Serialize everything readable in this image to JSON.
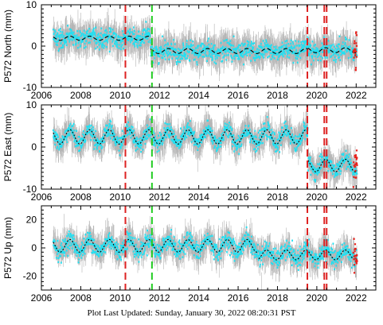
{
  "footer": "Plot Last Updated:   Sunday, January 30, 2022 08:20:31 PST",
  "colors": {
    "error_bars": "#b4b4b4",
    "daily": "#22e0f2",
    "model": "#000000",
    "outliers": "#e8201a",
    "equip_change": "#dd2222",
    "earthquake": "#22cc22"
  },
  "chart_data": [
    {
      "type": "scatter",
      "component": "north",
      "ylabel": "P572 North (mm)",
      "xlim": [
        2006,
        2023
      ],
      "ylim": [
        -10,
        10
      ],
      "xticks": [
        2006,
        2008,
        2010,
        2012,
        2014,
        2016,
        2018,
        2020,
        2022
      ],
      "yticks": [
        -10,
        0,
        10
      ],
      "offsets": [
        {
          "start": 2006.6,
          "end": 2011.55,
          "level": 1.9,
          "amp": 0.5
        },
        {
          "start": 2011.55,
          "end": 2019.55,
          "level": -1.2,
          "amp": 0.6
        },
        {
          "start": 2019.55,
          "end": 2022.05,
          "level": -1.0,
          "amp": 0.6
        }
      ],
      "noise": 1.4,
      "errorbar": 2.8,
      "markers_red": [
        2010.27,
        2019.52,
        2020.38,
        2020.5
      ],
      "markers_green": [
        2011.62
      ]
    },
    {
      "type": "scatter",
      "component": "east",
      "ylabel": "P572 East (mm)",
      "xlim": [
        2006,
        2023
      ],
      "ylim": [
        -10,
        10
      ],
      "xticks": [
        2006,
        2008,
        2010,
        2012,
        2014,
        2016,
        2018,
        2020,
        2022
      ],
      "yticks": [
        -10,
        0,
        10
      ],
      "offsets": [
        {
          "start": 2006.6,
          "end": 2019.55,
          "level": 2.4,
          "amp": 1.7
        },
        {
          "start": 2019.55,
          "end": 2022.05,
          "level": -4.4,
          "amp": 1.5
        }
      ],
      "noise": 1.2,
      "errorbar": 2.6,
      "markers_red": [
        2010.27,
        2019.52,
        2020.38,
        2020.5
      ],
      "markers_green": [
        2011.62
      ]
    },
    {
      "type": "scatter",
      "component": "up",
      "ylabel": "P572 Up (mm)",
      "xlim": [
        2006,
        2023
      ],
      "ylim": [
        -30,
        30
      ],
      "xticks": [
        2006,
        2008,
        2010,
        2012,
        2014,
        2016,
        2018,
        2020,
        2022
      ],
      "yticks": [
        -20,
        0,
        20
      ],
      "offsets": [
        {
          "start": 2006.6,
          "end": 2017.05,
          "level": 1.5,
          "amp": 4.5
        },
        {
          "start": 2017.05,
          "end": 2022.05,
          "level": -5.0,
          "amp": 3.5
        }
      ],
      "noise": 4.0,
      "errorbar": 7.0,
      "markers_red": [
        2010.27,
        2019.52,
        2020.38,
        2020.5
      ],
      "markers_green": [
        2011.62
      ]
    }
  ]
}
